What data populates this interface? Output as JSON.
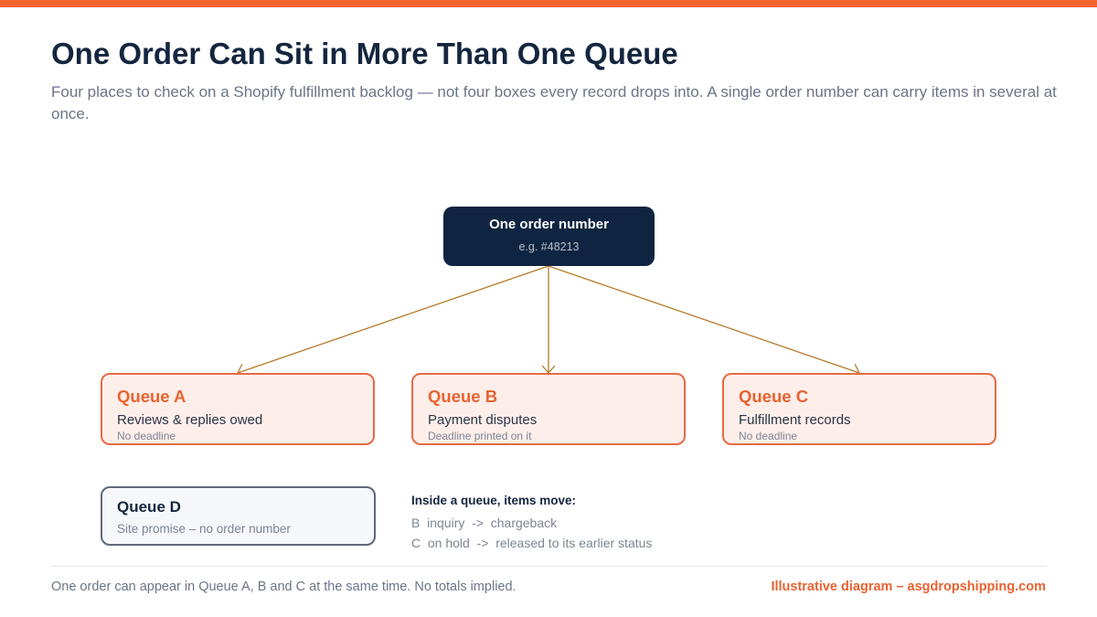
{
  "header": {
    "title": "One Order Can Sit in More Than One Queue",
    "subtitle": "Four places to check on a Shopify fulfillment backlog — not four boxes every record drops into. A single order number can carry items in several at once."
  },
  "source": {
    "title": "One order number",
    "example": "e.g. #48213"
  },
  "queues": [
    {
      "name": "Queue A",
      "description": "Reviews & replies owed",
      "note": "No deadline"
    },
    {
      "name": "Queue B",
      "description": "Payment disputes",
      "note": "Deadline printed on it"
    },
    {
      "name": "Queue C",
      "description": "Fulfillment records",
      "note": "No deadline"
    }
  ],
  "queue_d": {
    "name": "Queue D",
    "description": "Site promise – no order number"
  },
  "moves": {
    "title": "Inside a queue, items move:",
    "lines": [
      "B  inquiry  ->  chargeback",
      "C  on hold  ->  released to its earlier status"
    ]
  },
  "footer": {
    "note": "One order can appear in Queue A, B and C at the same time. No totals implied.",
    "credit": "Illustrative diagram – asgdropshipping.com"
  },
  "colors": {
    "accent": "#f26430",
    "navy": "#0f2440",
    "arrow": "#b77a2a",
    "queue_fill": "#fdeeea",
    "queue_border": "#e66a45"
  }
}
